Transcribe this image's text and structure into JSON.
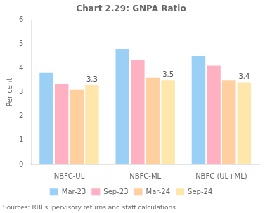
{
  "chart_data": {
    "type": "bar",
    "title": "Chart 2.29: GNPA Ratio",
    "categories": [
      "NBFC-UL",
      "NBFC-ML",
      "NBFC (UL+ML)"
    ],
    "series": [
      {
        "name": "Mar-23",
        "values": [
          3.8,
          4.8,
          4.5
        ]
      },
      {
        "name": "Sep-23",
        "values": [
          3.35,
          4.35,
          4.1
        ]
      },
      {
        "name": "Mar-24",
        "values": [
          3.1,
          3.6,
          3.5
        ]
      },
      {
        "name": "Sep-24",
        "values": [
          3.3,
          3.5,
          3.4
        ]
      }
    ],
    "ylabel": "Per cent",
    "ylim": [
      0,
      6
    ],
    "yticks": [
      0,
      1,
      2,
      3,
      4,
      5,
      6
    ],
    "grid": false,
    "legend": "bottom",
    "annotations": [
      {
        "category": "NBFC-UL",
        "series": "Sep-24",
        "value": 3.3,
        "text": "3.3"
      },
      {
        "category": "NBFC-ML",
        "series": "Sep-24",
        "value": 3.5,
        "text": "3.5"
      },
      {
        "category": "NBFC (UL+ML)",
        "series": "Sep-24",
        "value": 3.4,
        "text": "3.4"
      }
    ],
    "source": "Sources: RBI supervisory returns and staff calculations."
  }
}
